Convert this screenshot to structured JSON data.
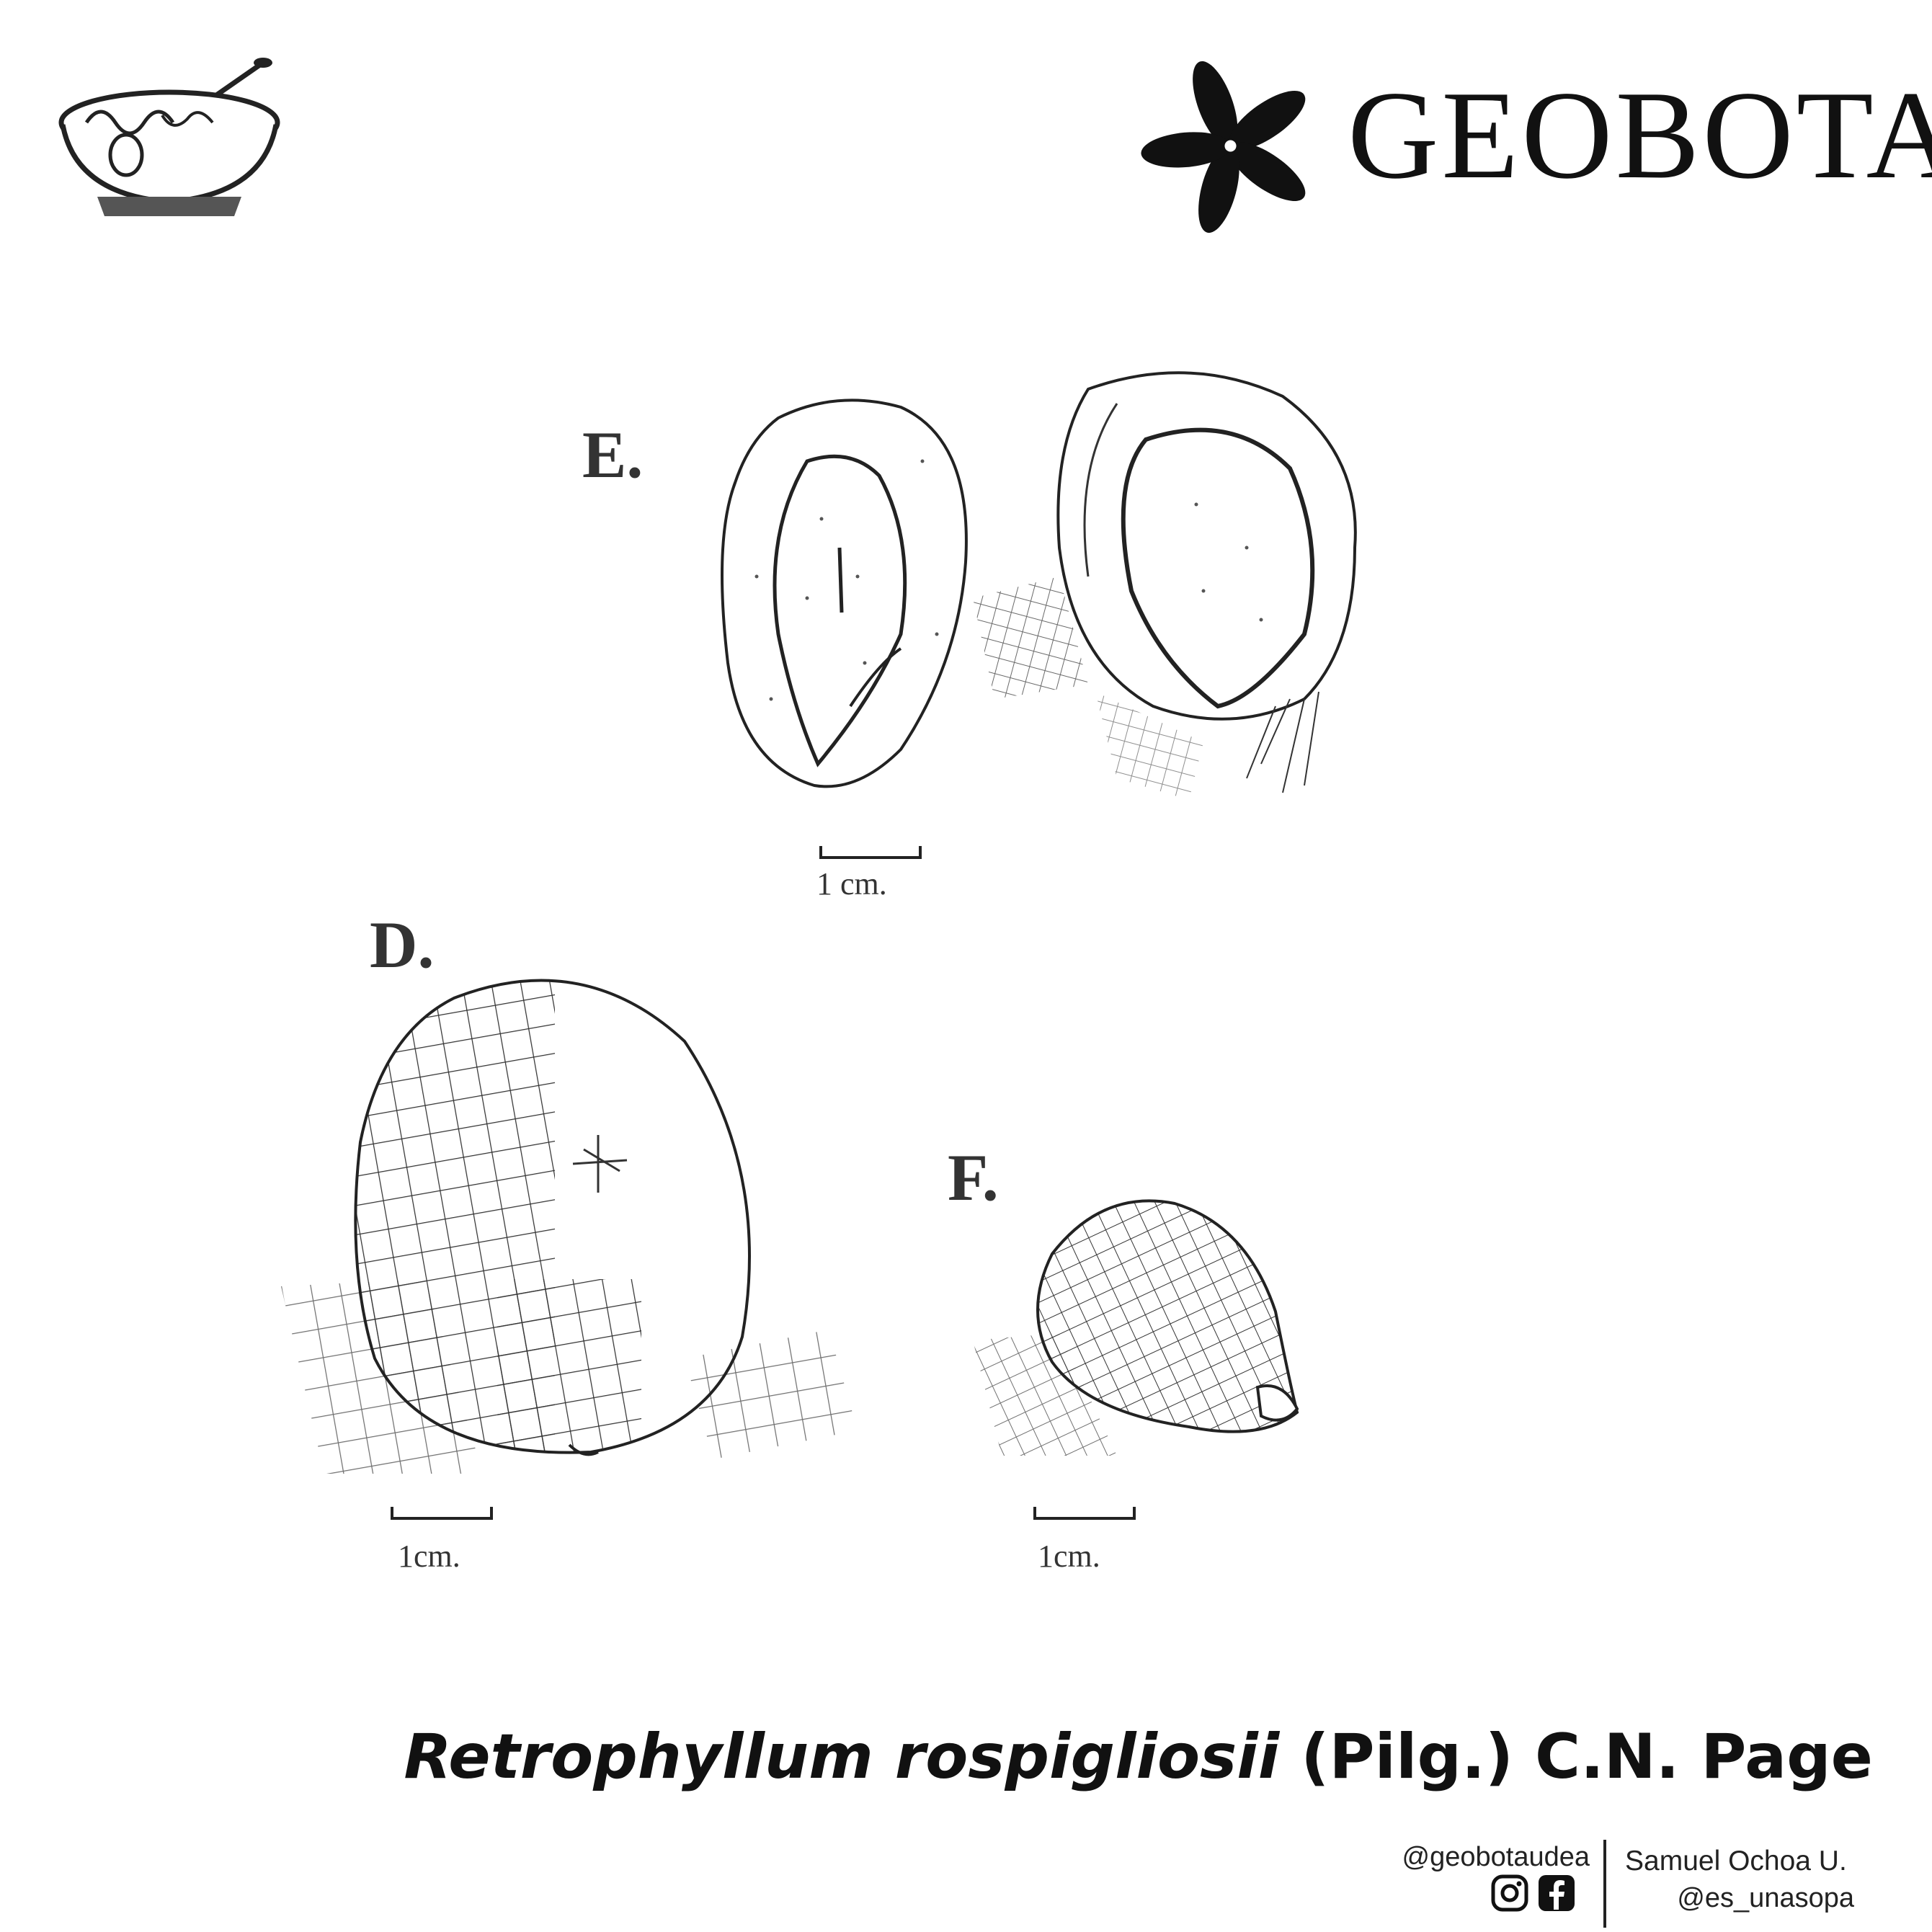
{
  "brand": {
    "name": "GEOBOTA"
  },
  "figures": [
    {
      "label": "E.",
      "scale": "1 cm."
    },
    {
      "label": "D.",
      "scale": "1cm."
    },
    {
      "label": "F.",
      "scale": "1cm."
    }
  ],
  "title": {
    "genus_species": "Retrophyllum rospigliosii",
    "authority": "(Pilg.) C.N. Page"
  },
  "credits": {
    "org_handle": "@geobotaudea",
    "social_icons": [
      "instagram-icon",
      "facebook-icon"
    ],
    "author_name": "Samuel Ochoa U.",
    "author_handle": "@es_unasopa"
  }
}
